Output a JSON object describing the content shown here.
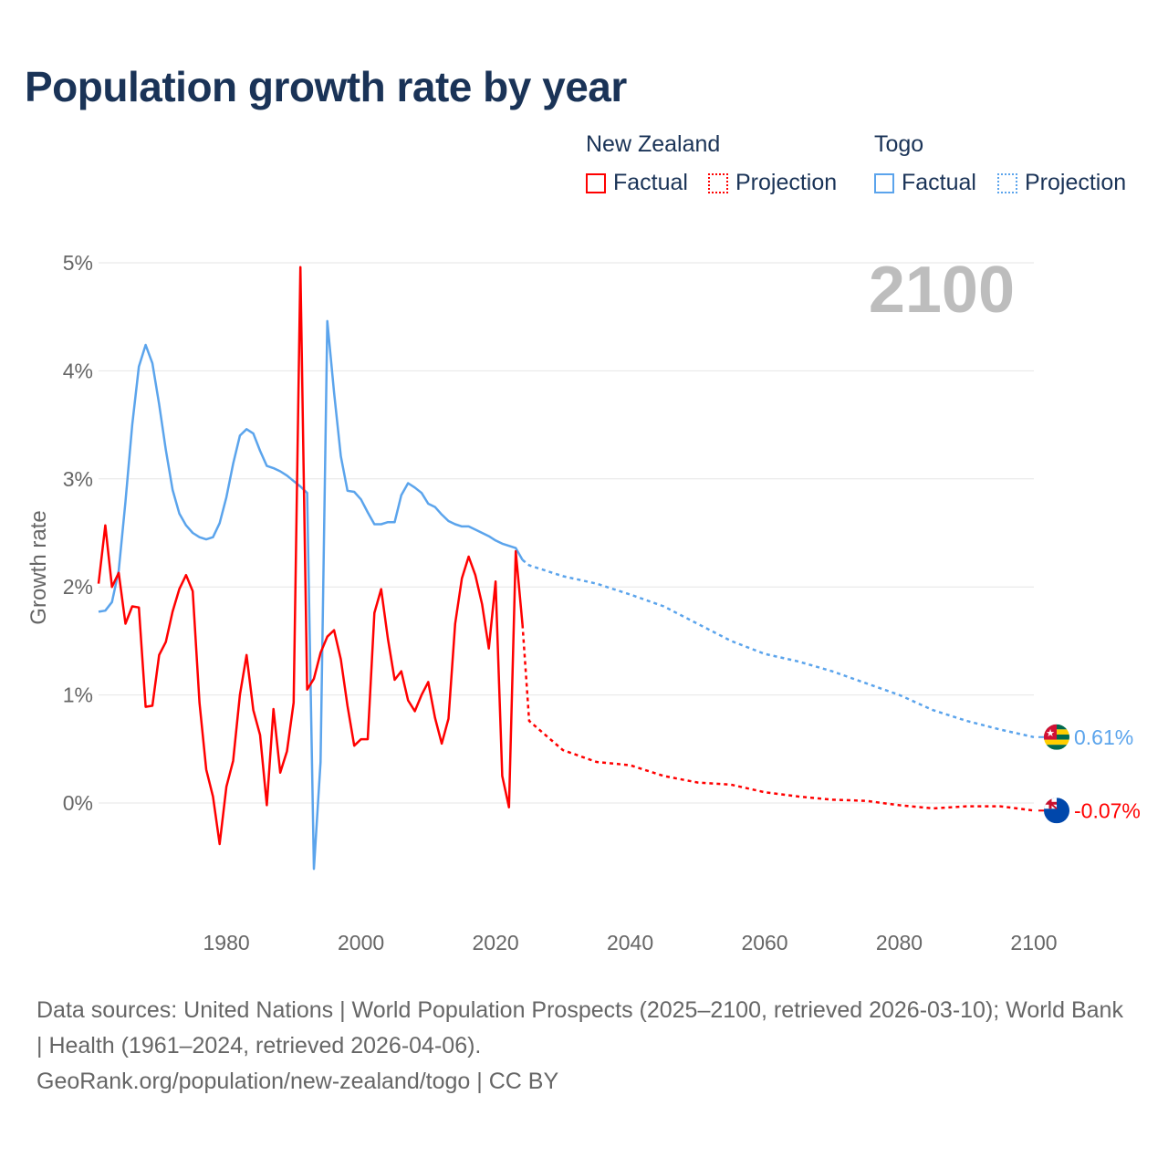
{
  "title": "Population growth rate by year",
  "legend": {
    "groups": [
      {
        "name": "New Zealand",
        "factual": "Factual",
        "projection": "Projection",
        "color": "#ff0000"
      },
      {
        "name": "Togo",
        "factual": "Factual",
        "projection": "Projection",
        "color": "#5ba4ec"
      }
    ]
  },
  "year_overlay": "2100",
  "footer": {
    "sources": "Data sources: United Nations | World Population Prospects (2025–2100, retrieved 2026-03-10); World Bank | Health (1961–2024, retrieved 2026-04-06).",
    "credit": "GeoRank.org/population/new-zealand/togo | CC BY"
  },
  "chart_data": {
    "type": "line",
    "title": "Population growth rate by year",
    "xlabel": "",
    "ylabel": "Growth rate",
    "xlim": [
      1961,
      2100
    ],
    "ylim": [
      -0.9,
      5.0
    ],
    "x_ticks": [
      "1980",
      "2000",
      "2020",
      "2040",
      "2060",
      "2080",
      "2100"
    ],
    "y_ticks": [
      "0%",
      "1%",
      "2%",
      "3%",
      "4%",
      "5%"
    ],
    "grid": true,
    "series": [
      {
        "name": "New Zealand",
        "color": "#ff0000",
        "end_label": "-0.07%",
        "flag": "new-zealand-flag",
        "factual": {
          "x": [
            1961,
            1962,
            1963,
            1964,
            1965,
            1966,
            1967,
            1968,
            1969,
            1970,
            1971,
            1972,
            1973,
            1974,
            1975,
            1976,
            1977,
            1978,
            1979,
            1980,
            1981,
            1982,
            1983,
            1984,
            1985,
            1986,
            1987,
            1988,
            1989,
            1990,
            1991,
            1992,
            1993,
            1994,
            1995,
            1996,
            1997,
            1998,
            1999,
            2000,
            2001,
            2002,
            2003,
            2004,
            2005,
            2006,
            2007,
            2008,
            2009,
            2010,
            2011,
            2012,
            2013,
            2014,
            2015,
            2016,
            2017,
            2018,
            2019,
            2020,
            2021,
            2022,
            2023,
            2024
          ],
          "y": [
            2.03,
            2.57,
            2.0,
            2.13,
            1.66,
            1.82,
            1.81,
            0.89,
            0.9,
            1.37,
            1.49,
            1.77,
            1.98,
            2.11,
            1.96,
            0.93,
            0.31,
            0.06,
            -0.38,
            0.15,
            0.39,
            1.0,
            1.37,
            0.86,
            0.63,
            -0.02,
            0.87,
            0.28,
            0.48,
            0.93,
            4.96,
            1.05,
            1.15,
            1.39,
            1.54,
            1.6,
            1.33,
            0.9,
            0.53,
            0.59,
            0.59,
            1.76,
            1.98,
            1.52,
            1.14,
            1.22,
            0.95,
            0.85,
            1.0,
            1.12,
            0.79,
            0.55,
            0.78,
            1.66,
            2.08,
            2.28,
            2.11,
            1.84,
            1.43,
            2.05,
            0.25,
            -0.04,
            2.33,
            1.65
          ]
        },
        "projection": {
          "x": [
            2024,
            2025,
            2030,
            2035,
            2040,
            2045,
            2050,
            2055,
            2060,
            2065,
            2070,
            2075,
            2080,
            2085,
            2090,
            2095,
            2100
          ],
          "y": [
            1.65,
            0.76,
            0.49,
            0.38,
            0.35,
            0.25,
            0.19,
            0.17,
            0.1,
            0.06,
            0.03,
            0.02,
            -0.02,
            -0.05,
            -0.03,
            -0.03,
            -0.07
          ]
        }
      },
      {
        "name": "Togo",
        "color": "#5ba4ec",
        "end_label": "0.61%",
        "flag": "togo-flag",
        "factual": {
          "x": [
            1961,
            1962,
            1963,
            1964,
            1965,
            1966,
            1967,
            1968,
            1969,
            1970,
            1971,
            1972,
            1973,
            1974,
            1975,
            1976,
            1977,
            1978,
            1979,
            1980,
            1981,
            1982,
            1983,
            1984,
            1985,
            1986,
            1987,
            1988,
            1989,
            1990,
            1991,
            1992,
            1993,
            1994,
            1995,
            1996,
            1997,
            1998,
            1999,
            2000,
            2001,
            2002,
            2003,
            2004,
            2005,
            2006,
            2007,
            2008,
            2009,
            2010,
            2011,
            2012,
            2013,
            2014,
            2015,
            2016,
            2017,
            2018,
            2019,
            2020,
            2021,
            2022,
            2023,
            2024
          ],
          "y": [
            1.77,
            1.78,
            1.86,
            2.15,
            2.79,
            3.5,
            4.04,
            4.24,
            4.07,
            3.69,
            3.27,
            2.9,
            2.68,
            2.57,
            2.5,
            2.46,
            2.44,
            2.46,
            2.59,
            2.83,
            3.14,
            3.4,
            3.46,
            3.42,
            3.26,
            3.12,
            3.1,
            3.07,
            3.03,
            2.98,
            2.93,
            2.87,
            -0.61,
            0.38,
            4.46,
            3.8,
            3.21,
            2.89,
            2.88,
            2.81,
            2.69,
            2.58,
            2.58,
            2.6,
            2.6,
            2.85,
            2.96,
            2.92,
            2.87,
            2.77,
            2.74,
            2.67,
            2.61,
            2.58,
            2.56,
            2.56,
            2.53,
            2.5,
            2.47,
            2.43,
            2.4,
            2.38,
            2.36,
            2.25
          ]
        },
        "projection": {
          "x": [
            2024,
            2025,
            2030,
            2035,
            2040,
            2045,
            2050,
            2055,
            2060,
            2065,
            2070,
            2075,
            2080,
            2085,
            2090,
            2095,
            2100
          ],
          "y": [
            2.25,
            2.2,
            2.1,
            2.03,
            1.93,
            1.82,
            1.66,
            1.5,
            1.38,
            1.31,
            1.22,
            1.11,
            1.0,
            0.86,
            0.76,
            0.68,
            0.61
          ]
        }
      }
    ]
  }
}
